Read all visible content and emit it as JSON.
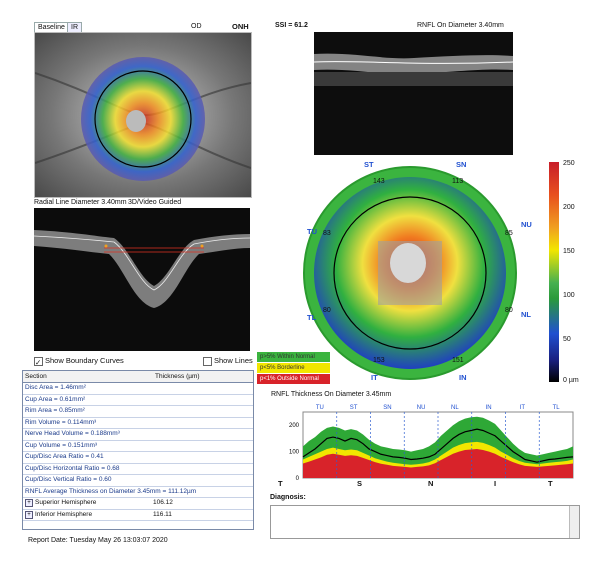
{
  "tabs": [
    "Baseline",
    "IR"
  ],
  "eye": "OD",
  "scan_type": "ONH",
  "ssi": "SSI = 61.2",
  "bscan_title": "RNFL On Diameter 3.40mm",
  "radial_title": "Radial Line Diameter 3.40mm",
  "guided": "3D/Video Guided",
  "show_boundary": "Show Boundary Curves",
  "show_lines": "Show Lines",
  "sectors": {
    "ST": "ST",
    "SN": "SN",
    "NU": "NU",
    "NL": "NL",
    "IN": "IN",
    "IT": "IT",
    "TL": "TL",
    "TU": "TU",
    "v_st": "143",
    "v_sn": "113",
    "v_nu": "85",
    "v_nl": "80",
    "v_in": "151",
    "v_it": "153",
    "v_tl": "80",
    "v_tu": "83"
  },
  "colorbar": {
    "ticks": [
      "250",
      "200",
      "150",
      "100",
      "50",
      "0 µm"
    ]
  },
  "legend": {
    "within": "p>5% Within Normal",
    "borderline": "p<5% Borderline",
    "outside": "p<1% Outside Normal"
  },
  "table": {
    "col1": "Section",
    "col2": "Thickness (µm)",
    "rows": [
      "Disc Area = 1.46mm²",
      "Cup Area = 0.61mm²",
      "Rim Area = 0.85mm²",
      "Rim Volume = 0.114mm³",
      "Nerve Head Volume = 0.188mm³",
      "Cup Volume = 0.151mm³",
      "Cup/Disc Area Ratio = 0.41",
      "Cup/Disc Horizontal Ratio = 0.68",
      "Cup/Disc Vertical Ratio = 0.60",
      "RNFL Average Thickness on Diameter 3.45mm = 111.12µm"
    ],
    "hemi": [
      {
        "label": "Superior Hemisphere",
        "value": "106.12"
      },
      {
        "label": "Inferior Hemisphere",
        "value": "116.11"
      }
    ]
  },
  "report_date": "Report Date: Tuesday May 26 13:03:07 2020",
  "chart_data": {
    "type": "area",
    "title": "RNFL Thickness On Diameter 3.45mm",
    "sector_labels": [
      "TU",
      "ST",
      "SN",
      "NU",
      "NL",
      "IN",
      "IT",
      "TL"
    ],
    "x_labels": [
      "T",
      "S",
      "N",
      "I",
      "T"
    ],
    "ylim": [
      0,
      250
    ],
    "yticks": [
      "200",
      "100",
      "0"
    ],
    "x": [
      0,
      8,
      16,
      24,
      32,
      40,
      48,
      56,
      64,
      72,
      80,
      88,
      96,
      104,
      112,
      120,
      128,
      136,
      144,
      152,
      160,
      168,
      176,
      184,
      192,
      200,
      208,
      216,
      224,
      232,
      240,
      248,
      256,
      264,
      272,
      280,
      288,
      296,
      304,
      312,
      320,
      328,
      336,
      344,
      352,
      360
    ],
    "patient": [
      80,
      95,
      110,
      130,
      150,
      155,
      150,
      140,
      150,
      145,
      130,
      110,
      100,
      90,
      85,
      80,
      78,
      75,
      70,
      72,
      75,
      80,
      90,
      110,
      130,
      150,
      165,
      175,
      180,
      185,
      180,
      170,
      160,
      140,
      120,
      100,
      85,
      70,
      65,
      60,
      65,
      70,
      72,
      75,
      78,
      80
    ],
    "normal_upper": [
      120,
      140,
      155,
      175,
      190,
      195,
      190,
      180,
      185,
      180,
      165,
      145,
      130,
      120,
      115,
      110,
      108,
      105,
      100,
      105,
      110,
      120,
      135,
      160,
      180,
      200,
      215,
      225,
      230,
      232,
      228,
      218,
      205,
      180,
      155,
      130,
      110,
      95,
      90,
      85,
      90,
      95,
      100,
      105,
      110,
      120
    ],
    "borderline_upper": [
      70,
      80,
      90,
      100,
      110,
      115,
      110,
      105,
      108,
      105,
      95,
      85,
      75,
      68,
      62,
      58,
      55,
      52,
      50,
      52,
      55,
      60,
      70,
      85,
      100,
      115,
      125,
      132,
      135,
      137,
      133,
      125,
      115,
      100,
      88,
      75,
      65,
      58,
      55,
      52,
      55,
      58,
      60,
      62,
      65,
      70
    ],
    "outside_upper": [
      55,
      62,
      70,
      78,
      88,
      92,
      88,
      84,
      86,
      84,
      76,
      68,
      60,
      54,
      50,
      46,
      44,
      42,
      40,
      42,
      44,
      48,
      56,
      68,
      80,
      92,
      100,
      106,
      108,
      110,
      106,
      100,
      92,
      80,
      70,
      60,
      52,
      46,
      44,
      42,
      44,
      46,
      48,
      50,
      52,
      55
    ]
  },
  "diagnosis": "Diagnosis:",
  "colors": {
    "green": "#2ea836",
    "yellow": "#f2e600",
    "red": "#d8232a",
    "blue": "#2050d0"
  }
}
